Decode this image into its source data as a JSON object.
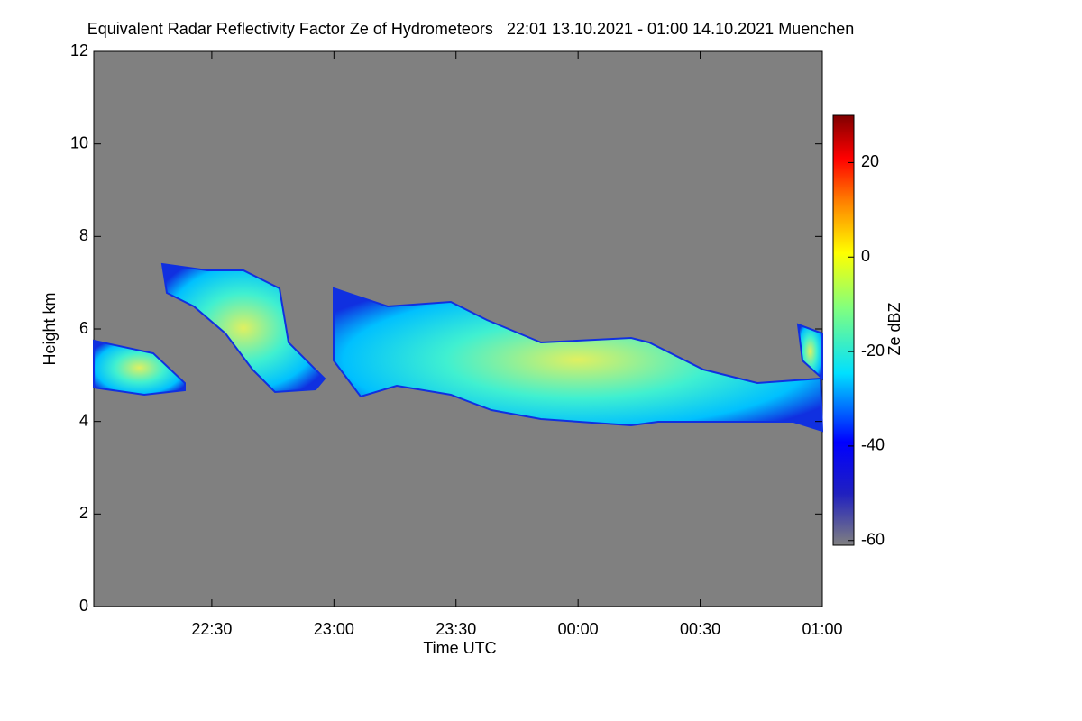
{
  "chart_data": {
    "type": "heatmap",
    "title": "Equivalent Radar Reflectivity Factor Ze of Hydrometeors   22:01 13.10.2021 - 01:00 14.10.2021 Muenchen",
    "x_label": "Time UTC",
    "y_label": "Height km",
    "xlim": [
      1321,
      1500
    ],
    "xticks": [
      {
        "value": 1350,
        "label": "22:30"
      },
      {
        "value": 1380,
        "label": "23:00"
      },
      {
        "value": 1410,
        "label": "23:30"
      },
      {
        "value": 1440,
        "label": "00:00"
      },
      {
        "value": 1470,
        "label": "00:30"
      },
      {
        "value": 1500,
        "label": "01:00"
      }
    ],
    "ylim": [
      0,
      12
    ],
    "yticks": [
      0,
      2,
      4,
      6,
      8,
      10,
      12
    ],
    "colorbar_label": "Ze dBZ",
    "clim": [
      -61,
      30
    ],
    "cticks": [
      -60,
      -40,
      -20,
      0,
      20
    ]
  }
}
